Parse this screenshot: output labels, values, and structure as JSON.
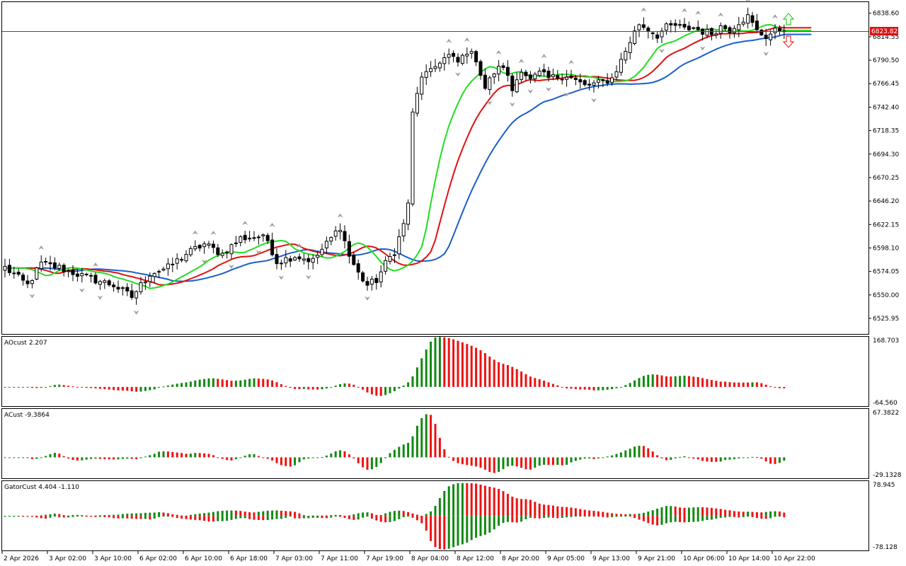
{
  "colors": {
    "background": "#ffffff",
    "frame": "#000000",
    "candle_up": "#ffffff",
    "candle_down": "#000000",
    "jaw": "#1a5fc9",
    "teeth": "#e01010",
    "lips": "#22dd22",
    "bid_line": "#e01010",
    "fractal": "#a0a0a0",
    "bar_up": "#118811",
    "bar_down": "#ee1111",
    "arrow_up": "#33cc33",
    "arrow_down": "#ee3333"
  },
  "main_panel": {
    "price_axis_ticks": [
      "6838.60",
      "6814.55",
      "6790.50",
      "6766.45",
      "6742.40",
      "6718.35",
      "6694.30",
      "6670.25",
      "6646.20",
      "6622.15",
      "6598.10",
      "6574.05",
      "6550.00",
      "6525.95"
    ],
    "bid_price": "6823.82"
  },
  "time_axis": [
    "2 Apr 2026",
    "3 Apr 02:00",
    "3 Apr 10:00",
    "6 Apr 02:00",
    "6 Apr 10:00",
    "6 Apr 18:00",
    "7 Apr 03:00",
    "7 Apr 11:00",
    "7 Apr 19:00",
    "8 Apr 04:00",
    "8 Apr 12:00",
    "8 Apr 20:00",
    "9 Apr 05:00",
    "9 Apr 13:00",
    "9 Apr 21:00",
    "10 Apr 06:00",
    "10 Apr 14:00",
    "10 Apr 22:00"
  ],
  "indicators": {
    "ao": {
      "label": "AOcust 2.207",
      "max": "168.703",
      "min": "-64.560"
    },
    "ac": {
      "label": "ACust -9.3864",
      "max": "67.3822",
      "min": "-29.1328"
    },
    "gator": {
      "label": "GatorCust 4.404 -1.110",
      "max": "78.945",
      "min": "-78.128"
    }
  },
  "chart_data": {
    "type": "candlestick",
    "symbol_timeframe": "",
    "x_axis_labels": [
      "2 Apr 2026",
      "3 Apr 02:00",
      "3 Apr 10:00",
      "6 Apr 02:00",
      "6 Apr 10:00",
      "6 Apr 18:00",
      "7 Apr 03:00",
      "7 Apr 11:00",
      "7 Apr 19:00",
      "8 Apr 04:00",
      "8 Apr 12:00",
      "8 Apr 20:00",
      "9 Apr 05:00",
      "9 Apr 13:00",
      "9 Apr 21:00",
      "10 Apr 06:00",
      "10 Apr 14:00",
      "10 Apr 22:00"
    ],
    "y_range": [
      6510,
      6850
    ],
    "close_keypoints": [
      [
        0,
        6578
      ],
      [
        5,
        6560
      ],
      [
        8,
        6582
      ],
      [
        12,
        6578
      ],
      [
        18,
        6568
      ],
      [
        24,
        6560
      ],
      [
        28,
        6548
      ],
      [
        32,
        6572
      ],
      [
        36,
        6578
      ],
      [
        40,
        6592
      ],
      [
        44,
        6602
      ],
      [
        48,
        6592
      ],
      [
        52,
        6608
      ],
      [
        56,
        6610
      ],
      [
        58,
        6606
      ],
      [
        60,
        6584
      ],
      [
        64,
        6590
      ],
      [
        68,
        6585
      ],
      [
        72,
        6608
      ],
      [
        74,
        6620
      ],
      [
        76,
        6590
      ],
      [
        78,
        6572
      ],
      [
        80,
        6560
      ],
      [
        82,
        6565
      ],
      [
        84,
        6582
      ],
      [
        86,
        6595
      ],
      [
        88,
        6622
      ],
      [
        89,
        6645
      ],
      [
        90,
        6735
      ],
      [
        92,
        6775
      ],
      [
        94,
        6778
      ],
      [
        96,
        6790
      ],
      [
        98,
        6795
      ],
      [
        100,
        6788
      ],
      [
        102,
        6800
      ],
      [
        104,
        6792
      ],
      [
        106,
        6762
      ],
      [
        108,
        6778
      ],
      [
        110,
        6785
      ],
      [
        112,
        6760
      ],
      [
        114,
        6782
      ],
      [
        116,
        6770
      ],
      [
        118,
        6777
      ],
      [
        120,
        6772
      ],
      [
        124,
        6775
      ],
      [
        128,
        6764
      ],
      [
        132,
        6768
      ],
      [
        134,
        6772
      ],
      [
        136,
        6790
      ],
      [
        138,
        6810
      ],
      [
        140,
        6828
      ],
      [
        142,
        6822
      ],
      [
        144,
        6816
      ],
      [
        146,
        6824
      ],
      [
        148,
        6826
      ],
      [
        150,
        6822
      ],
      [
        152,
        6824
      ],
      [
        154,
        6820
      ],
      [
        156,
        6818
      ],
      [
        158,
        6825
      ],
      [
        160,
        6822
      ],
      [
        162,
        6830
      ],
      [
        164,
        6835
      ],
      [
        166,
        6820
      ],
      [
        168,
        6815
      ],
      [
        170,
        6820
      ],
      [
        172,
        6823
      ]
    ],
    "series": [
      {
        "name": "",
        "kind": "jaw"
      },
      {
        "name": "",
        "kind": "teeth"
      },
      {
        "name": "",
        "kind": "lips"
      }
    ],
    "ao_range": [
      -64.56,
      168.703
    ],
    "ac_range": [
      -29.1328,
      67.3822
    ],
    "gator_range": [
      -78.128,
      78.945
    ],
    "bid": 6823.82
  }
}
